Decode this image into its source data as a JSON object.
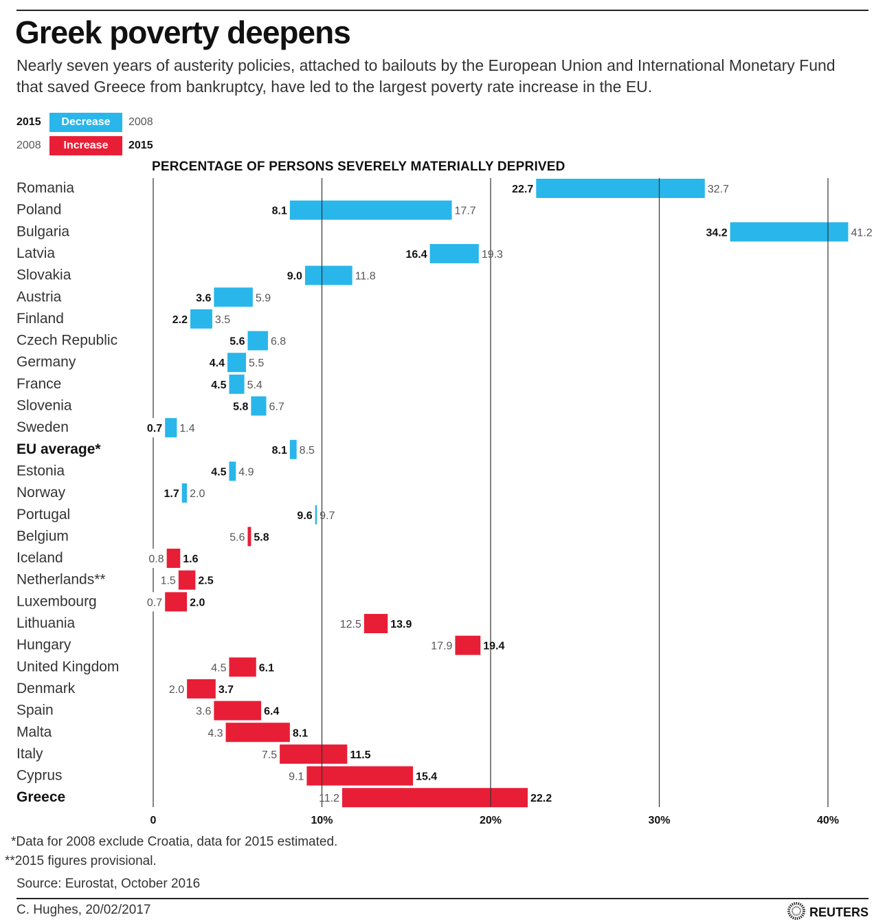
{
  "header": {
    "title": "Greek poverty deepens",
    "subtitle": "Nearly seven years of austerity policies, attached to bailouts by the European Union and International Monetary Fund that saved Greece from bankruptcy, have led to the largest poverty rate increase in the EU."
  },
  "legend": {
    "decrease": {
      "left_year": "2015",
      "label": "Decrease",
      "right_year": "2008",
      "color": "#29b6ea"
    },
    "increase": {
      "left_year": "2008",
      "label": "Increase",
      "right_year": "2015",
      "color": "#e81e36"
    }
  },
  "chart_data": {
    "type": "bar",
    "subtype": "range-dumbbell",
    "title": "PERCENTAGE OF PERSONS SEVERELY MATERIALLY DEPRIVED",
    "xlabel": "",
    "ylabel": "",
    "xlim": [
      0,
      42
    ],
    "x_ticks": [
      0,
      10,
      20,
      30,
      40
    ],
    "x_tick_labels": [
      "0",
      "10%",
      "20%",
      "30%",
      "40%"
    ],
    "grid": true,
    "series": [
      {
        "name": "2008"
      },
      {
        "name": "2015"
      }
    ],
    "categories": [
      "Romania",
      "Poland",
      "Bulgaria",
      "Latvia",
      "Slovakia",
      "Austria",
      "Finland",
      "Czech Republic",
      "Germany",
      "France",
      "Slovenia",
      "Sweden",
      "EU average*",
      "Estonia",
      "Norway",
      "Portugal",
      "Belgium",
      "Iceland",
      "Netherlands**",
      "Luxembourg",
      "Lithuania",
      "Hungary",
      "United Kingdom",
      "Denmark",
      "Spain",
      "Malta",
      "Italy",
      "Cyprus",
      "Greece"
    ],
    "rows": [
      {
        "country": "Romania",
        "y2008": 32.7,
        "y2015": 22.7,
        "bold": false
      },
      {
        "country": "Poland",
        "y2008": 17.7,
        "y2015": 8.1,
        "bold": false
      },
      {
        "country": "Bulgaria",
        "y2008": 41.2,
        "y2015": 34.2,
        "bold": false
      },
      {
        "country": "Latvia",
        "y2008": 19.3,
        "y2015": 16.4,
        "bold": false
      },
      {
        "country": "Slovakia",
        "y2008": 11.8,
        "y2015": 9.0,
        "bold": false
      },
      {
        "country": "Austria",
        "y2008": 5.9,
        "y2015": 3.6,
        "bold": false
      },
      {
        "country": "Finland",
        "y2008": 3.5,
        "y2015": 2.2,
        "bold": false
      },
      {
        "country": "Czech Republic",
        "y2008": 6.8,
        "y2015": 5.6,
        "bold": false
      },
      {
        "country": "Germany",
        "y2008": 5.5,
        "y2015": 4.4,
        "bold": false
      },
      {
        "country": "France",
        "y2008": 5.4,
        "y2015": 4.5,
        "bold": false
      },
      {
        "country": "Slovenia",
        "y2008": 6.7,
        "y2015": 5.8,
        "bold": false
      },
      {
        "country": "Sweden",
        "y2008": 1.4,
        "y2015": 0.7,
        "bold": false
      },
      {
        "country": "EU average*",
        "y2008": 8.5,
        "y2015": 8.1,
        "bold": true
      },
      {
        "country": "Estonia",
        "y2008": 4.9,
        "y2015": 4.5,
        "bold": false
      },
      {
        "country": "Norway",
        "y2008": 2.0,
        "y2015": 1.7,
        "bold": false
      },
      {
        "country": "Portugal",
        "y2008": 9.7,
        "y2015": 9.6,
        "bold": false
      },
      {
        "country": "Belgium",
        "y2008": 5.6,
        "y2015": 5.8,
        "bold": false
      },
      {
        "country": "Iceland",
        "y2008": 0.8,
        "y2015": 1.6,
        "bold": false
      },
      {
        "country": "Netherlands**",
        "y2008": 1.5,
        "y2015": 2.5,
        "bold": false
      },
      {
        "country": "Luxembourg",
        "y2008": 0.7,
        "y2015": 2.0,
        "bold": false
      },
      {
        "country": "Lithuania",
        "y2008": 12.5,
        "y2015": 13.9,
        "bold": false
      },
      {
        "country": "Hungary",
        "y2008": 17.9,
        "y2015": 19.4,
        "bold": false
      },
      {
        "country": "United Kingdom",
        "y2008": 4.5,
        "y2015": 6.1,
        "bold": false
      },
      {
        "country": "Denmark",
        "y2008": 2.0,
        "y2015": 3.7,
        "bold": false
      },
      {
        "country": "Spain",
        "y2008": 3.6,
        "y2015": 6.4,
        "bold": false
      },
      {
        "country": "Malta",
        "y2008": 4.3,
        "y2015": 8.1,
        "bold": false
      },
      {
        "country": "Italy",
        "y2008": 7.5,
        "y2015": 11.5,
        "bold": false
      },
      {
        "country": "Cyprus",
        "y2008": 9.1,
        "y2015": 15.4,
        "bold": false
      },
      {
        "country": "Greece",
        "y2008": 11.2,
        "y2015": 22.2,
        "bold": true
      }
    ]
  },
  "footer": {
    "note1": "*Data for 2008 exclude Croatia, data for 2015 estimated.",
    "note2": "**2015 figures provisional.",
    "source": "Source: Eurostat, October 2016",
    "credit": "C. Hughes, 20/02/2017",
    "brand": "REUTERS",
    "brand_icon": "reuters-logo-icon"
  }
}
